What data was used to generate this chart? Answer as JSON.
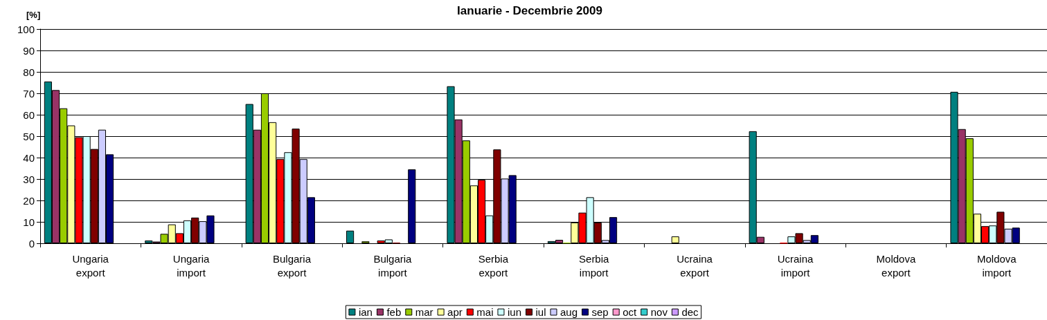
{
  "chart_data": {
    "type": "bar",
    "title": "Ianuarie - Decembrie 2009",
    "ylabel": "[%]",
    "categories": [
      "Ungaria export",
      "Ungaria import",
      "Bulgaria export",
      "Bulgaria import",
      "Serbia export",
      "Serbia import",
      "Ucraina export",
      "Ucraina import",
      "Moldova export",
      "Moldova import"
    ],
    "series": [
      {
        "name": "ian",
        "color": "#008080",
        "values": [
          75.5,
          1.3,
          65,
          5.9,
          73.3,
          1,
          null,
          52.3,
          null,
          70.7
        ]
      },
      {
        "name": "feb",
        "color": "#993366",
        "values": [
          71.5,
          0.8,
          53,
          null,
          57.8,
          1.6,
          null,
          3,
          null,
          53.3
        ]
      },
      {
        "name": "mar",
        "color": "#99cc00",
        "values": [
          63,
          4.4,
          70,
          0.9,
          48,
          0.3,
          null,
          null,
          null,
          49
        ]
      },
      {
        "name": "apr",
        "color": "#ffff99",
        "values": [
          55,
          8.8,
          56.5,
          null,
          27,
          9.7,
          3.2,
          null,
          null,
          13.8
        ]
      },
      {
        "name": "mai",
        "color": "#ff0000",
        "values": [
          49.5,
          4.7,
          39.3,
          1.3,
          29.6,
          14.3,
          null,
          0.2,
          null,
          8
        ]
      },
      {
        "name": "iun",
        "color": "#ccffff",
        "values": [
          50,
          10.7,
          42.5,
          1.8,
          13,
          21.5,
          null,
          3.2,
          null,
          8.3
        ]
      },
      {
        "name": "iul",
        "color": "#800000",
        "values": [
          44,
          12,
          53.5,
          0.3,
          43.8,
          9.7,
          null,
          4.7,
          null,
          14.7
        ]
      },
      {
        "name": "aug",
        "color": "#ccccff",
        "values": [
          53,
          10.3,
          39.3,
          null,
          30.2,
          1.5,
          null,
          1.5,
          null,
          6.8
        ]
      },
      {
        "name": "sep",
        "color": "#000080",
        "values": [
          41.5,
          13,
          21.5,
          34.5,
          31.8,
          12.2,
          null,
          3.8,
          null,
          7.3
        ]
      },
      {
        "name": "oct",
        "color": "#ff99cc",
        "values": [
          null,
          null,
          null,
          null,
          null,
          null,
          null,
          null,
          null,
          null
        ]
      },
      {
        "name": "nov",
        "color": "#33cccc",
        "values": [
          null,
          null,
          null,
          null,
          null,
          null,
          null,
          null,
          null,
          null
        ]
      },
      {
        "name": "dec",
        "color": "#cc99ff",
        "values": [
          null,
          null,
          null,
          null,
          null,
          null,
          null,
          null,
          null,
          null
        ]
      }
    ],
    "ylim": [
      0,
      100
    ],
    "yticks": [
      0,
      10,
      20,
      30,
      40,
      50,
      60,
      70,
      80,
      90,
      100
    ],
    "grid": "y",
    "legend": "bottom"
  }
}
